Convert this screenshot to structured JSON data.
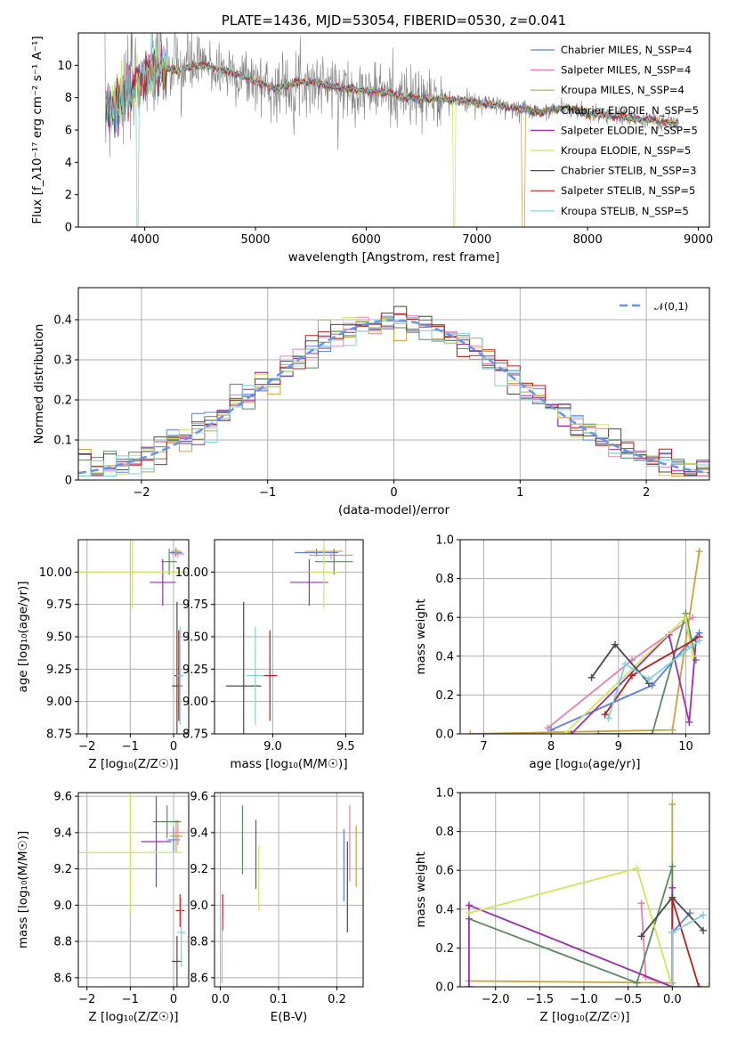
{
  "colors": [
    "#5b7fdb",
    "#e77fb0",
    "#c8a23a",
    "#5a8a5f",
    "#9b2fae",
    "#cfe85a",
    "#4a4a4a",
    "#b52020",
    "#7fd0d8"
  ],
  "norm_color": "#6495ed",
  "chart_data": [
    {
      "id": "spectrum",
      "type": "line",
      "title": "PLATE=1436, MJD=53054, FIBERID=0530, z=0.041",
      "xlabel": "wavelength [Angstrom, rest frame]",
      "ylabel": "Flux [f_λ10⁻¹⁷ erg cm⁻² s⁻¹ A⁻¹]",
      "xlim": [
        3400,
        9100
      ],
      "ylim": [
        0,
        12
      ],
      "xticks": [
        4000,
        5000,
        6000,
        7000,
        8000,
        9000
      ],
      "yticks": [
        0,
        2,
        4,
        6,
        8,
        10
      ],
      "grid": false,
      "legend_position": "top-right",
      "legend": [
        "Chabrier MILES, N_SSP=4",
        "Salpeter MILES, N_SSP=4",
        "Kroupa MILES, N_SSP=4",
        "Chabrier ELODIE, N_SSP=5",
        "Salpeter ELODIE, N_SSP=5",
        "Kroupa ELODIE, N_SSP=5",
        "Chabrier STELIB, N_SSP=3",
        "Salpeter STELIB, N_SSP=5",
        "Kroupa STELIB, N_SSP=5"
      ],
      "series_data_color": "#808080",
      "model_wave": [
        3650,
        3700,
        3800,
        3900,
        4000,
        4100,
        4200,
        4300,
        4400,
        4500,
        4600,
        4700,
        4800,
        4900,
        5000,
        5100,
        5200,
        5300,
        5400,
        5500,
        5600,
        5700,
        5800,
        5900,
        6000,
        6100,
        6200,
        6300,
        6400,
        6500,
        6600,
        6700,
        6800,
        6900,
        7000,
        7100,
        7200,
        7300,
        7400,
        7500,
        7600,
        7700,
        7800,
        7900,
        8000,
        8100,
        8200,
        8300,
        8400,
        8500,
        8600,
        8700,
        8800
      ],
      "model_flux": [
        7.6,
        7.4,
        8.0,
        8.8,
        9.4,
        9.7,
        9.8,
        9.6,
        9.9,
        10.0,
        9.9,
        9.7,
        9.5,
        9.3,
        9.0,
        8.8,
        8.5,
        8.8,
        9.0,
        8.9,
        8.9,
        8.7,
        8.6,
        8.5,
        8.4,
        8.4,
        8.3,
        8.1,
        8.0,
        7.9,
        7.9,
        7.9,
        7.8,
        7.8,
        7.7,
        7.6,
        7.5,
        7.4,
        7.3,
        7.2,
        7.1,
        7.3,
        7.4,
        7.2,
        7.0,
        7.0,
        6.9,
        6.8,
        6.7,
        6.6,
        6.6,
        6.5,
        6.4
      ]
    },
    {
      "id": "residuals",
      "type": "histogram",
      "xlabel": "(data-model)/error",
      "ylabel": "Normed distribution",
      "xlim": [
        -2.5,
        2.5
      ],
      "ylim": [
        0,
        0.48
      ],
      "xticks": [
        -2,
        -1,
        0,
        1,
        2
      ],
      "yticks": [
        0.0,
        0.1,
        0.2,
        0.3,
        0.4
      ],
      "grid": true,
      "legend_position": "top-right",
      "legend": [
        "𝒩(0,1)"
      ],
      "bin_width": 0.1
    },
    {
      "id": "age-vs-z",
      "type": "errorbar",
      "xlabel": "Z [log₁₀(Z/Z☉)]",
      "ylabel": "age  [log₁₀(age/yr)]",
      "xlim": [
        -2.2,
        0.35
      ],
      "ylim": [
        8.75,
        10.25
      ],
      "xticks": [
        -2,
        -1,
        0
      ],
      "yticks": [
        8.75,
        9.0,
        9.25,
        9.5,
        9.75,
        10.0
      ],
      "ytick_labels": [
        "8.75",
        "9.00",
        "9.25",
        "9.50",
        "9.75",
        "10.00"
      ],
      "grid": true,
      "points": [
        {
          "x": 0.05,
          "y": 10.15,
          "xe": 0.15,
          "ye": 0.03
        },
        {
          "x": 0.1,
          "y": 10.14,
          "xe": 0.15,
          "ye": 0.03
        },
        {
          "x": 0.06,
          "y": 10.16,
          "xe": 0.12,
          "ye": 0.03
        },
        {
          "x": -0.1,
          "y": 10.08,
          "xe": 0.18,
          "ye": 0.1
        },
        {
          "x": -0.25,
          "y": 9.92,
          "xe": 0.3,
          "ye": 0.18
        },
        {
          "x": -0.95,
          "y": 10.0,
          "xe": 1.25,
          "ye": 0.28
        },
        {
          "x": 0.08,
          "y": 9.12,
          "xe": 0.12,
          "ye": 0.65
        },
        {
          "x": 0.12,
          "y": 9.2,
          "xe": 0.1,
          "ye": 0.35
        },
        {
          "x": 0.15,
          "y": 9.2,
          "xe": 0.08,
          "ye": 0.38
        }
      ]
    },
    {
      "id": "age-vs-mass",
      "type": "errorbar",
      "xlabel": "mass [log₁₀(M/M☉)]",
      "ylabel": "",
      "xlim": [
        8.6,
        9.62
      ],
      "ylim": [
        8.75,
        10.25
      ],
      "xticks": [
        9.0,
        9.5
      ],
      "xtick_labels": [
        "9.0",
        "9.5"
      ],
      "yticks": [
        8.75,
        9.0,
        9.25,
        9.5,
        9.75,
        10.0
      ],
      "ytick_labels": [
        "8.75",
        "9.00",
        "9.25",
        "9.50",
        "9.75",
        "10.00"
      ],
      "grid": true,
      "points": [
        {
          "x": 9.3,
          "y": 10.15,
          "xe": 0.15,
          "ye": 0.03
        },
        {
          "x": 9.4,
          "y": 10.13,
          "xe": 0.15,
          "ye": 0.03
        },
        {
          "x": 9.35,
          "y": 10.16,
          "xe": 0.13,
          "ye": 0.03
        },
        {
          "x": 9.42,
          "y": 10.08,
          "xe": 0.13,
          "ye": 0.1
        },
        {
          "x": 9.25,
          "y": 9.92,
          "xe": 0.13,
          "ye": 0.18
        },
        {
          "x": 9.35,
          "y": 10.0,
          "xe": 0.1,
          "ye": 0.28
        },
        {
          "x": 8.8,
          "y": 9.12,
          "xe": 0.12,
          "ye": 0.65
        },
        {
          "x": 8.98,
          "y": 9.2,
          "xe": 0.05,
          "ye": 0.35
        },
        {
          "x": 8.88,
          "y": 9.2,
          "xe": 0.06,
          "ye": 0.38
        }
      ]
    },
    {
      "id": "weight-vs-age",
      "type": "line",
      "xlabel": "age  [log₁₀(age/yr)]",
      "ylabel": "mass weight",
      "xlim": [
        6.65,
        10.35
      ],
      "ylim": [
        0,
        1
      ],
      "xticks": [
        7,
        8,
        9,
        10
      ],
      "yticks": [
        0.0,
        0.2,
        0.4,
        0.6,
        0.8,
        1.0
      ],
      "ytick_labels": [
        "0.0",
        "0.2",
        "0.4",
        "0.6",
        "0.8",
        "1.0"
      ],
      "grid": true,
      "series": [
        {
          "x": [
            8.0,
            9.5,
            10.0,
            10.2
          ],
          "y": [
            0.02,
            0.25,
            0.45,
            0.52
          ]
        },
        {
          "x": [
            7.95,
            9.2,
            10.1
          ],
          "y": [
            0.03,
            0.38,
            0.6
          ]
        },
        {
          "x": [
            6.8,
            9.8,
            10.2
          ],
          "y": [
            0.0,
            0.02,
            0.94
          ]
        },
        {
          "x": [
            8.7,
            9.5,
            10.0,
            10.15
          ],
          "y": [
            0.0,
            0.0,
            0.62,
            0.38
          ]
        },
        {
          "x": [
            8.3,
            9.75,
            10.05,
            10.15
          ],
          "y": [
            0.0,
            0.51,
            0.06,
            0.48
          ]
        },
        {
          "x": [
            8.2,
            10.0,
            10.1
          ],
          "y": [
            0.0,
            0.6,
            0.4
          ]
        },
        {
          "x": [
            8.6,
            8.95,
            9.45
          ],
          "y": [
            0.29,
            0.46,
            0.26
          ]
        },
        {
          "x": [
            8.8,
            9.2,
            10.2
          ],
          "y": [
            0.1,
            0.3,
            0.5
          ]
        },
        {
          "x": [
            8.85,
            9.1,
            9.45,
            10.2
          ],
          "y": [
            0.08,
            0.36,
            0.28,
            0.48
          ]
        }
      ]
    },
    {
      "id": "mass-vs-z",
      "type": "errorbar",
      "xlabel": "Z [log₁₀(Z/Z☉)]",
      "ylabel": "mass [log₁₀(M/M☉)]",
      "xlim": [
        -2.2,
        0.35
      ],
      "ylim": [
        8.55,
        9.62
      ],
      "xticks": [
        -2,
        -1,
        0
      ],
      "yticks": [
        8.6,
        8.8,
        9.0,
        9.2,
        9.4,
        9.6
      ],
      "ytick_labels": [
        "8.6",
        "8.8",
        "9.0",
        "9.2",
        "9.4",
        "9.6"
      ],
      "grid": true,
      "points": [
        {
          "x": 0.0,
          "y": 9.36,
          "xe": 0.15,
          "ye": 0.07
        },
        {
          "x": 0.1,
          "y": 9.4,
          "xe": 0.18,
          "ye": 0.07
        },
        {
          "x": 0.06,
          "y": 9.38,
          "xe": 0.15,
          "ye": 0.09
        },
        {
          "x": -0.15,
          "y": 9.46,
          "xe": 0.32,
          "ye": 0.09
        },
        {
          "x": -0.4,
          "y": 9.35,
          "xe": 0.35,
          "ye": 0.25
        },
        {
          "x": -1.0,
          "y": 9.29,
          "xe": 1.2,
          "ye": 0.33
        },
        {
          "x": 0.08,
          "y": 8.69,
          "xe": 0.12,
          "ye": 0.14
        },
        {
          "x": 0.15,
          "y": 8.97,
          "xe": 0.1,
          "ye": 0.09
        },
        {
          "x": 0.18,
          "y": 8.85,
          "xe": 0.1,
          "ye": 0.19
        }
      ]
    },
    {
      "id": "mass-vs-ebv",
      "type": "errorbar",
      "xlabel": "E(B-V)",
      "ylabel": "",
      "xlim": [
        -0.01,
        0.245
      ],
      "ylim": [
        8.55,
        9.62
      ],
      "xticks": [
        0.0,
        0.1,
        0.2
      ],
      "xtick_labels": [
        "0.0",
        "0.1",
        "0.2"
      ],
      "yticks": [
        8.6,
        8.8,
        9.0,
        9.2,
        9.4,
        9.6
      ],
      "ytick_labels": [
        "8.6",
        "8.8",
        "9.0",
        "9.2",
        "9.4",
        "9.6"
      ],
      "grid": true,
      "points": [
        {
          "x": 0.212,
          "y": 9.22,
          "xe": 0,
          "ye": 0.2
        },
        {
          "x": 0.222,
          "y": 9.34,
          "xe": 0,
          "ye": 0.21
        },
        {
          "x": 0.233,
          "y": 9.27,
          "xe": 0,
          "ye": 0.17
        },
        {
          "x": 0.038,
          "y": 9.36,
          "xe": 0,
          "ye": 0.19
        },
        {
          "x": 0.061,
          "y": 9.28,
          "xe": 0,
          "ye": 0.19
        },
        {
          "x": 0.066,
          "y": 9.15,
          "xe": 0,
          "ye": 0.18
        },
        {
          "x": 0.218,
          "y": 9.1,
          "xe": 0,
          "ye": 0.25
        },
        {
          "x": 0.004,
          "y": 8.96,
          "xe": 0,
          "ye": 0.1
        },
        {
          "x": 0.003,
          "y": 8.75,
          "xe": 0,
          "ye": 0.18
        }
      ]
    },
    {
      "id": "weight-vs-z",
      "type": "line",
      "xlabel": "Z [log₁₀(Z/Z☉)]",
      "ylabel": "mass weight",
      "xlim": [
        -2.4,
        0.42
      ],
      "ylim": [
        0,
        1
      ],
      "xticks": [
        -2.0,
        -1.5,
        -1.0,
        -0.5,
        0.0
      ],
      "xtick_labels": [
        "−2.0",
        "−1.5",
        "−1.0",
        "−0.5",
        "0.0"
      ],
      "yticks": [
        0.0,
        0.2,
        0.4,
        0.6,
        0.8,
        1.0
      ],
      "ytick_labels": [
        "0.0",
        "0.2",
        "0.4",
        "0.6",
        "0.8",
        "1.0"
      ],
      "grid": true,
      "series": [
        {
          "x": [
            0.0,
            0.0,
            0.2
          ],
          "y": [
            0.0,
            0.28,
            0.38
          ]
        },
        {
          "x": [
            -0.35,
            -0.3,
            0.0
          ],
          "y": [
            0.43,
            0.05,
            0.0
          ]
        },
        {
          "x": [
            -2.3,
            0.0,
            0.0,
            0.0
          ],
          "y": [
            0.03,
            0.02,
            0.94,
            0.0
          ]
        },
        {
          "x": [
            -2.3,
            -0.4,
            0.0,
            0.0
          ],
          "y": [
            0.35,
            0.02,
            0.62,
            0.0
          ]
        },
        {
          "x": [
            -2.3,
            -2.3,
            0.0,
            0.0
          ],
          "y": [
            0.0,
            0.42,
            0.0,
            0.51
          ]
        },
        {
          "x": [
            -2.3,
            -0.4,
            0.0,
            0.4
          ],
          "y": [
            0.38,
            0.61,
            0.0,
            0.0
          ]
        },
        {
          "x": [
            -0.35,
            0.0,
            0.35
          ],
          "y": [
            0.26,
            0.46,
            0.29
          ]
        },
        {
          "x": [
            0.0,
            0.0,
            0.3
          ],
          "y": [
            0.0,
            0.45,
            0.0
          ]
        },
        {
          "x": [
            0.0,
            0.0,
            0.35
          ],
          "y": [
            0.0,
            0.28,
            0.37
          ]
        }
      ]
    }
  ]
}
